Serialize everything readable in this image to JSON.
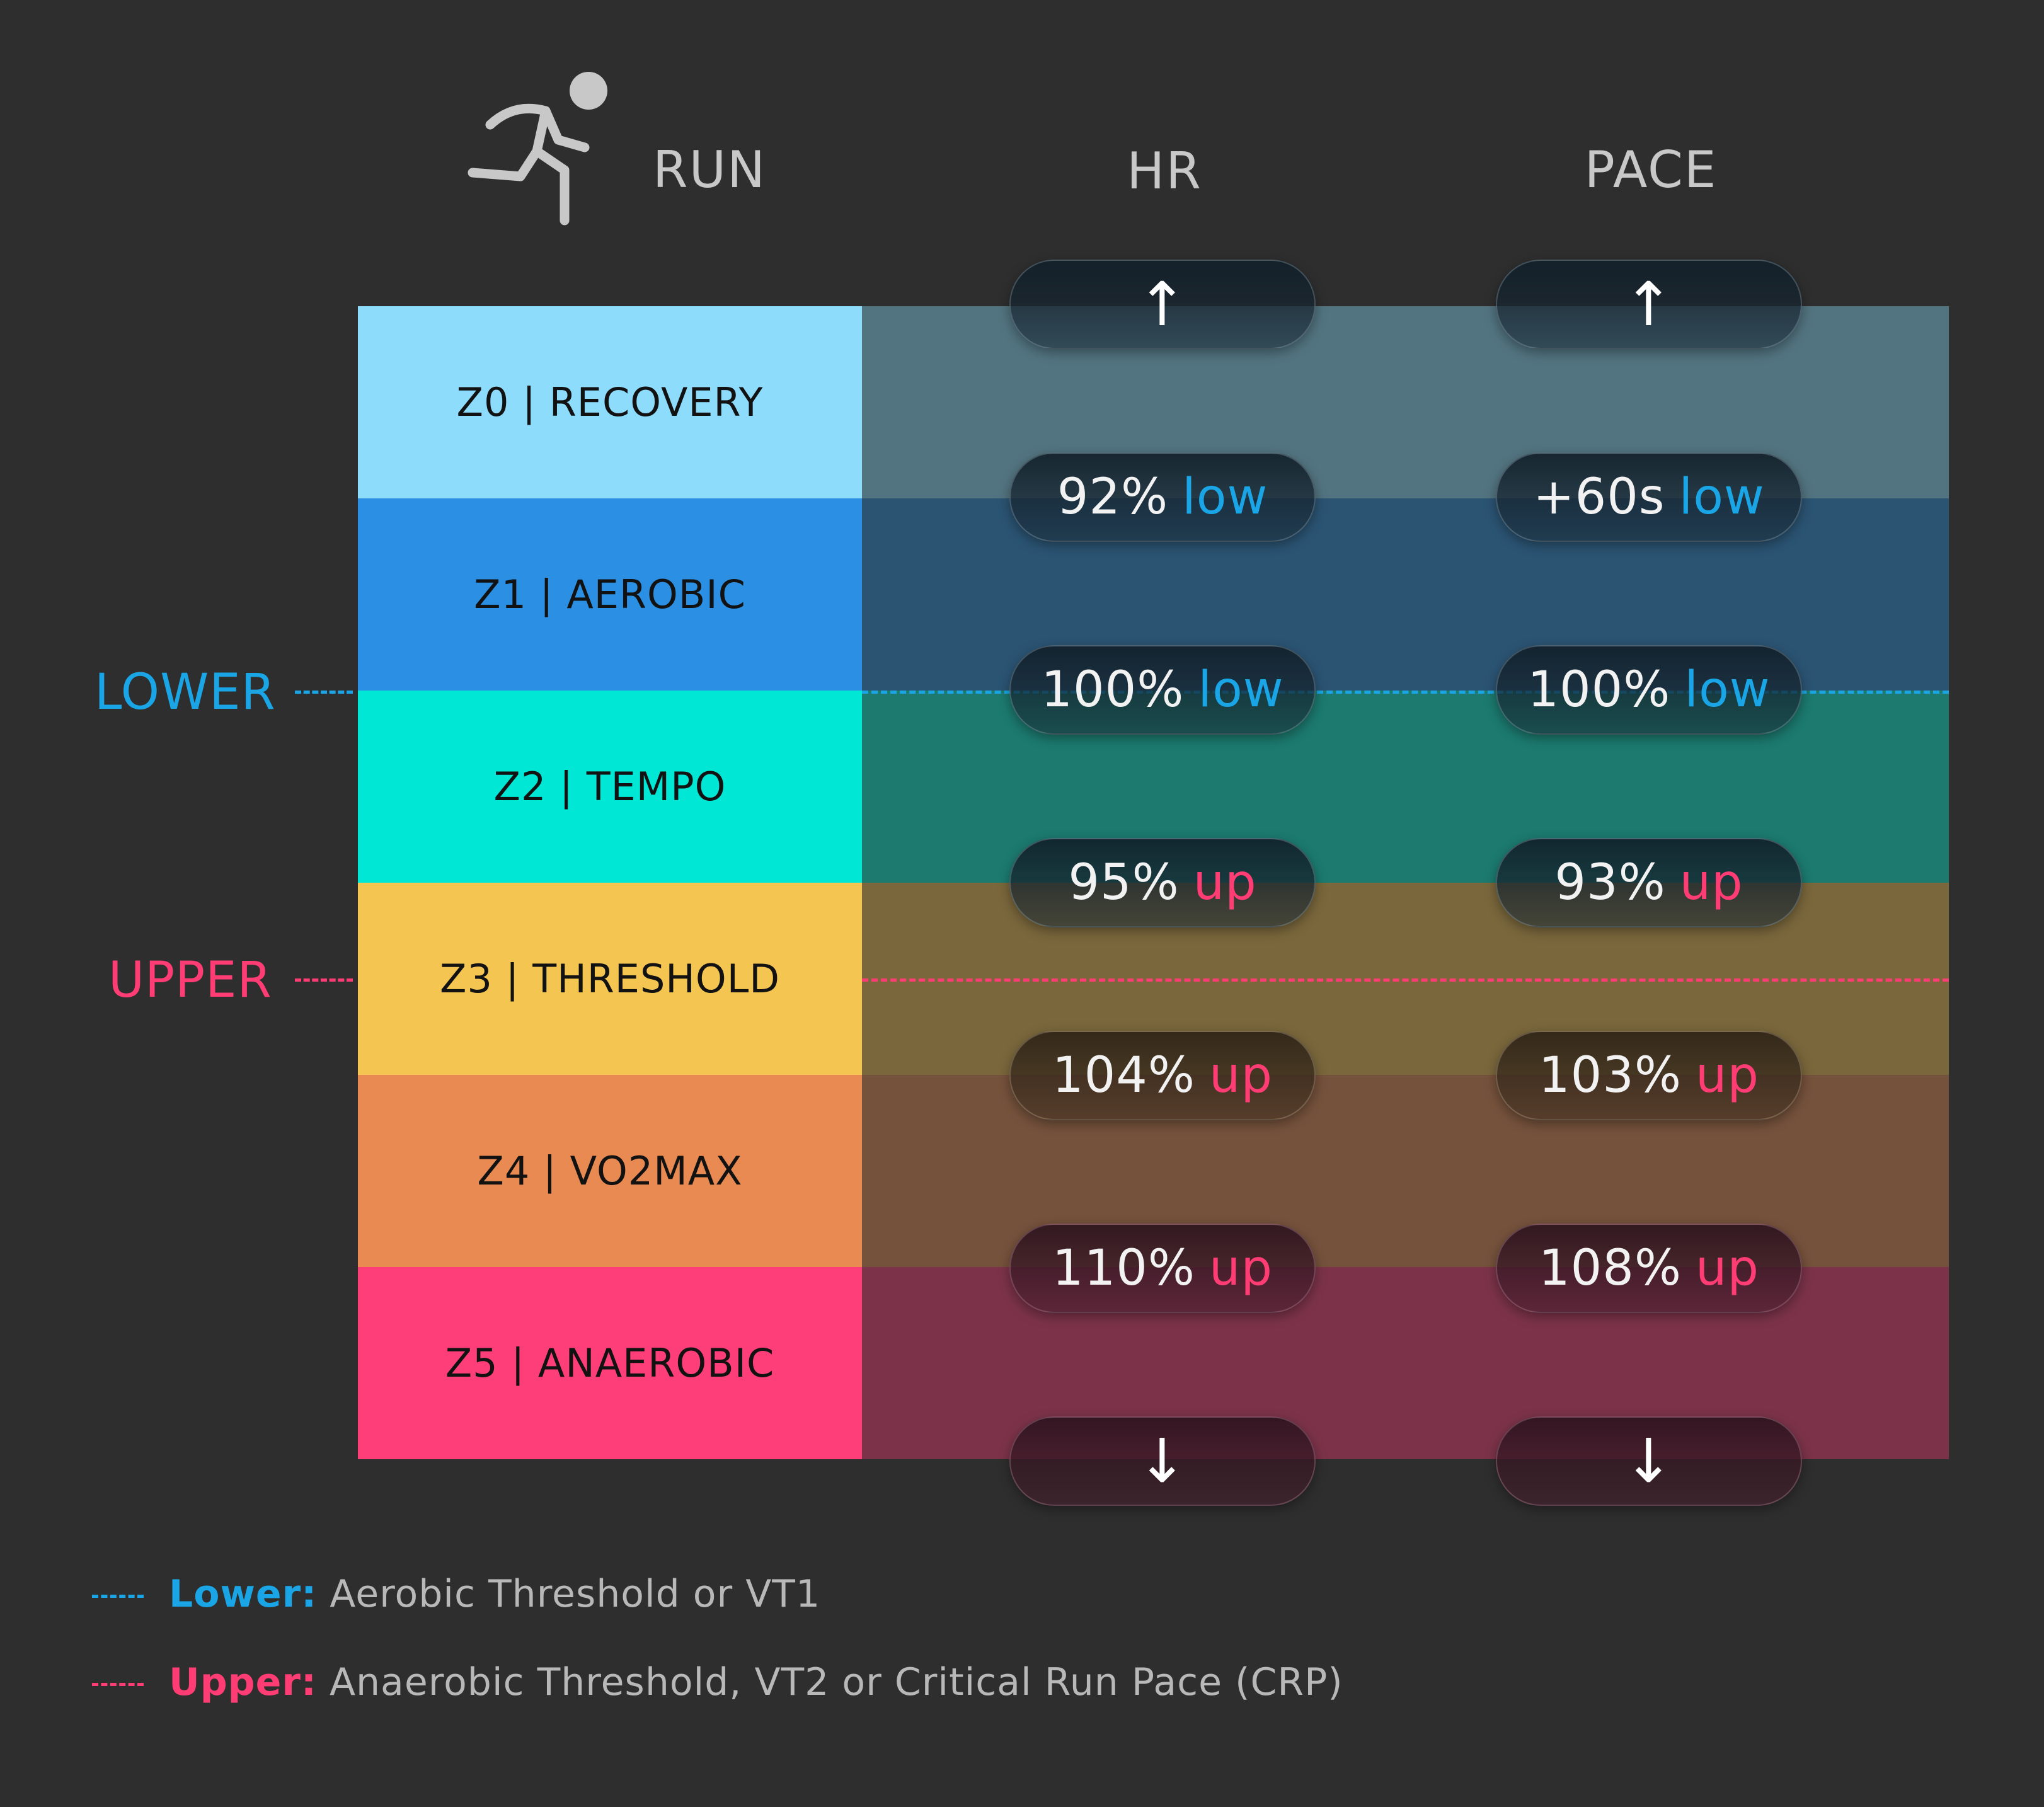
{
  "header": {
    "run_label": "RUN",
    "hr_label": "HR",
    "pace_label": "PACE"
  },
  "icons": {
    "runner": "running-person-icon",
    "arrow_up": "arrow-up-icon",
    "arrow_down": "arrow-down-icon"
  },
  "zones": [
    {
      "label": "Z0 | RECOVERY",
      "color": "#8ddcfb",
      "band_color": "#527480"
    },
    {
      "label": "Z1 | AEROBIC",
      "color": "#2b90e3",
      "band_color": "#2b5473"
    },
    {
      "label": "Z2 | TEMPO",
      "color": "#00e8d5",
      "band_color": "#1c7a6f"
    },
    {
      "label": "Z3 | THRESHOLD",
      "color": "#f5c551",
      "band_color": "#7a673c"
    },
    {
      "label": "Z4 | VO2MAX",
      "color": "#e88a52",
      "band_color": "#75523c"
    },
    {
      "label": "Z5 | ANAEROBIC",
      "color": "#fd3e79",
      "band_color": "#7c334a"
    }
  ],
  "thresholds": {
    "lower": {
      "label": "LOWER",
      "color": "#1aa6e6"
    },
    "upper": {
      "label": "UPPER",
      "color": "#ff3d74"
    }
  },
  "hr": {
    "top_arrow": "↑",
    "boundaries": [
      {
        "value": "92%",
        "ref": "low"
      },
      {
        "value": "100%",
        "ref": "low"
      },
      {
        "value": "95%",
        "ref": "up"
      },
      {
        "value": "104%",
        "ref": "up"
      },
      {
        "value": "110%",
        "ref": "up"
      }
    ],
    "bottom_arrow": "↓"
  },
  "pace": {
    "top_arrow": "↑",
    "boundaries": [
      {
        "value": "+60s",
        "ref": "low"
      },
      {
        "value": "100%",
        "ref": "low"
      },
      {
        "value": "93%",
        "ref": "up"
      },
      {
        "value": "103%",
        "ref": "up"
      },
      {
        "value": "108%",
        "ref": "up"
      }
    ],
    "bottom_arrow": "↓"
  },
  "footnotes": [
    {
      "key": "Lower:",
      "text": "Aerobic Threshold or VT1"
    },
    {
      "key": "Upper:",
      "text": "Anaerobic Threshold, VT2 or Critical Run Pace (CRP)"
    }
  ]
}
